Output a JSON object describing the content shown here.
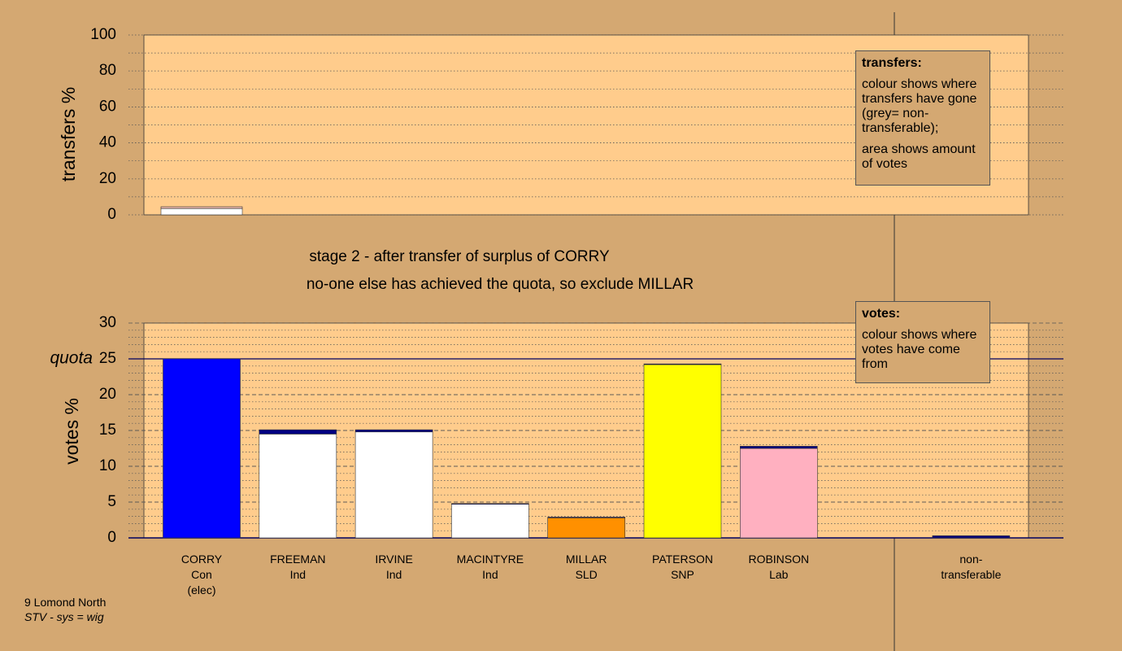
{
  "chart_data": [
    {
      "type": "bar",
      "ylabel": "transfers %",
      "ylim": [
        0,
        100
      ],
      "yticks": [
        0,
        20,
        40,
        60,
        80,
        100
      ],
      "minor_grid_step": 10,
      "series": [
        {
          "color": "#ffffff",
          "values": [
            3.5
          ]
        },
        {
          "color": "#e8b4a8",
          "values": [
            1
          ]
        }
      ],
      "legend": {
        "title": "transfers:",
        "lines": [
          "colour shows where transfers have gone (grey= non-transferable);",
          "area shows amount of votes"
        ]
      }
    },
    {
      "type": "bar",
      "title": "stage 2 - after transfer of surplus of CORRY",
      "subtitle": "no-one else has achieved the quota, so exclude MILLAR",
      "ylabel": "votes %",
      "ylim": [
        0,
        30
      ],
      "yticks": [
        0,
        5,
        10,
        15,
        20,
        25,
        30
      ],
      "minor_grid_step": 1,
      "quota": 25,
      "quota_label": "quota",
      "categories": [
        "CORRY",
        "FREEMAN",
        "IRVINE",
        "MACINTYRE",
        "MILLAR",
        "PATERSON",
        "ROBINSON",
        "non-\ntransferable"
      ],
      "sublabels": [
        "Con\n(elec)",
        "Ind",
        "Ind",
        "Ind",
        "SLD",
        "SNP",
        "Lab",
        null
      ],
      "series": [
        {
          "colors": [
            "#0000ff",
            "#ffffff",
            "#ffffff",
            "#ffffff",
            "#ff9000",
            "#ffff00",
            "#ffb0c0",
            "#000080"
          ],
          "values": [
            25,
            14.5,
            14.8,
            4.7,
            2.8,
            24.2,
            12.5,
            0
          ]
        },
        {
          "color": "#000080",
          "values": [
            0,
            0.6,
            0.3,
            0.1,
            0.1,
            0.1,
            0.3,
            0.3
          ]
        }
      ],
      "legend": {
        "title": "votes:",
        "lines": [
          "colour shows where votes have come from"
        ]
      }
    }
  ],
  "footer": {
    "place": "9 Lomond North",
    "system": "STV - sys = wig"
  }
}
